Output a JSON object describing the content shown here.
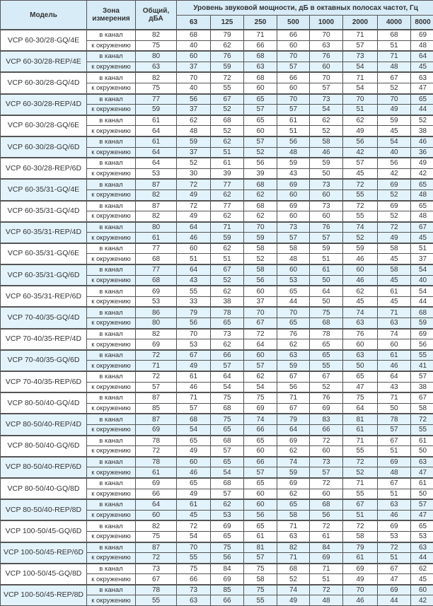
{
  "header": {
    "model": "Модель",
    "zone": "Зона измерения",
    "total": "Общий, дБА",
    "group": "Уровень звуковой мощности, дБ в октавных полосах частот, Гц",
    "freqs": [
      "63",
      "125",
      "250",
      "500",
      "1000",
      "2000",
      "4000",
      "8000"
    ]
  },
  "zones": {
    "duct": "в канал",
    "env": "к окружению"
  },
  "colors": {
    "header_bg": "#d7ecf7",
    "row_blue": "#e3f3fb",
    "text": "#333333"
  },
  "models": [
    {
      "name": "VCP 60-30/28-GQ/4E",
      "shaded": false,
      "duct": [
        82,
        68,
        79,
        71,
        66,
        70,
        71,
        68,
        69
      ],
      "env": [
        75,
        40,
        62,
        66,
        60,
        63,
        57,
        51,
        48
      ]
    },
    {
      "name": "VCP 60-30/28-REP/4E",
      "shaded": true,
      "duct": [
        80,
        60,
        76,
        68,
        70,
        76,
        73,
        71,
        64
      ],
      "env": [
        63,
        37,
        59,
        63,
        57,
        60,
        54,
        48,
        45
      ]
    },
    {
      "name": "VCP 60-30/28-GQ/4D",
      "shaded": false,
      "duct": [
        82,
        70,
        72,
        68,
        66,
        70,
        71,
        67,
        63
      ],
      "env": [
        75,
        40,
        55,
        60,
        60,
        57,
        54,
        52,
        47
      ]
    },
    {
      "name": "VCP 60-30/28-REP/4D",
      "shaded": true,
      "duct": [
        77,
        56,
        67,
        65,
        70,
        73,
        70,
        70,
        65
      ],
      "env": [
        59,
        37,
        52,
        57,
        57,
        54,
        51,
        49,
        44
      ]
    },
    {
      "name": "VCP 60-30/28-GQ/6E",
      "shaded": false,
      "duct": [
        61,
        62,
        68,
        65,
        61,
        62,
        62,
        59,
        52
      ],
      "env": [
        64,
        48,
        52,
        60,
        51,
        52,
        49,
        45,
        38
      ]
    },
    {
      "name": "VCP 60-30/28-GQ/6D",
      "shaded": true,
      "duct": [
        61,
        59,
        62,
        57,
        56,
        58,
        56,
        54,
        46
      ],
      "env": [
        64,
        37,
        51,
        52,
        48,
        46,
        42,
        40,
        36
      ]
    },
    {
      "name": "VCP 60-30/28-REP/6D",
      "shaded": false,
      "duct": [
        64,
        52,
        61,
        56,
        59,
        59,
        57,
        56,
        49
      ],
      "env": [
        53,
        30,
        39,
        39,
        43,
        50,
        45,
        42,
        42
      ]
    },
    {
      "name": "VCP 60-35/31-GQ/4E",
      "shaded": true,
      "duct": [
        87,
        72,
        77,
        68,
        69,
        73,
        72,
        69,
        65
      ],
      "env": [
        82,
        49,
        62,
        62,
        60,
        60,
        55,
        52,
        48
      ]
    },
    {
      "name": "VCP 60-35/31-GQ/4D",
      "shaded": false,
      "duct": [
        87,
        72,
        77,
        68,
        69,
        73,
        72,
        69,
        65
      ],
      "env": [
        82,
        49,
        62,
        62,
        60,
        60,
        55,
        52,
        48
      ]
    },
    {
      "name": "VCP 60-35/31-REP/4D",
      "shaded": true,
      "duct": [
        80,
        64,
        71,
        70,
        73,
        76,
        74,
        72,
        67
      ],
      "env": [
        61,
        46,
        59,
        59,
        57,
        57,
        52,
        49,
        45
      ]
    },
    {
      "name": "VCP 60-35/31-GQ/6E",
      "shaded": false,
      "duct": [
        77,
        60,
        62,
        58,
        58,
        59,
        59,
        58,
        51
      ],
      "env": [
        68,
        51,
        51,
        52,
        48,
        51,
        46,
        45,
        37
      ]
    },
    {
      "name": "VCP 60-35/31-GQ/6D",
      "shaded": true,
      "duct": [
        77,
        64,
        67,
        58,
        60,
        61,
        60,
        58,
        54
      ],
      "env": [
        68,
        43,
        52,
        56,
        53,
        50,
        46,
        45,
        40
      ]
    },
    {
      "name": "VCP 60-35/31-REP/6D",
      "shaded": false,
      "duct": [
        69,
        55,
        62,
        60,
        65,
        64,
        62,
        61,
        54
      ],
      "env": [
        53,
        33,
        38,
        37,
        44,
        50,
        45,
        45,
        44
      ]
    },
    {
      "name": "VCP 70-40/35-GQ/4D",
      "shaded": true,
      "duct": [
        86,
        79,
        78,
        70,
        70,
        75,
        74,
        71,
        68
      ],
      "env": [
        80,
        56,
        65,
        67,
        65,
        68,
        63,
        63,
        59
      ]
    },
    {
      "name": "VCP 70-40/35-REP/4D",
      "shaded": false,
      "duct": [
        82,
        70,
        73,
        72,
        76,
        78,
        76,
        74,
        69
      ],
      "env": [
        69,
        53,
        62,
        64,
        62,
        65,
        60,
        60,
        56
      ]
    },
    {
      "name": "VCP 70-40/35-GQ/6D",
      "shaded": true,
      "duct": [
        72,
        67,
        66,
        60,
        63,
        65,
        63,
        61,
        55
      ],
      "env": [
        71,
        49,
        57,
        57,
        59,
        55,
        50,
        46,
        41
      ]
    },
    {
      "name": "VCP 70-40/35-REP/6D",
      "shaded": false,
      "duct": [
        72,
        61,
        64,
        62,
        67,
        67,
        65,
        64,
        57
      ],
      "env": [
        57,
        46,
        54,
        54,
        56,
        52,
        47,
        43,
        38
      ]
    },
    {
      "name": "VCP 80-50/40-GQ/4D",
      "shaded": false,
      "duct": [
        87,
        71,
        75,
        75,
        71,
        76,
        75,
        71,
        67
      ],
      "env": [
        85,
        57,
        68,
        69,
        67,
        69,
        64,
        50,
        58
      ]
    },
    {
      "name": "VCP 80-50/40-REP/4D",
      "shaded": true,
      "duct": [
        87,
        68,
        75,
        74,
        79,
        83,
        81,
        78,
        72
      ],
      "env": [
        69,
        54,
        65,
        66,
        64,
        66,
        61,
        57,
        55
      ]
    },
    {
      "name": "VCP 80-50/40-GQ/6D",
      "shaded": false,
      "duct": [
        78,
        65,
        68,
        65,
        69,
        72,
        71,
        67,
        61
      ],
      "env": [
        72,
        49,
        57,
        60,
        62,
        60,
        55,
        51,
        50
      ]
    },
    {
      "name": "VCP 80-50/40-REP/6D",
      "shaded": true,
      "duct": [
        78,
        60,
        65,
        66,
        74,
        73,
        72,
        69,
        63
      ],
      "env": [
        61,
        46,
        54,
        57,
        59,
        57,
        52,
        48,
        47
      ]
    },
    {
      "name": "VCP 80-50/40-GQ/8D",
      "shaded": false,
      "duct": [
        69,
        65,
        68,
        65,
        69,
        72,
        71,
        67,
        61
      ],
      "env": [
        66,
        49,
        57,
        60,
        62,
        60,
        55,
        51,
        50
      ]
    },
    {
      "name": "VCP 80-50/40-REP/8D",
      "shaded": true,
      "duct": [
        64,
        61,
        62,
        60,
        65,
        68,
        67,
        63,
        57
      ],
      "env": [
        60,
        45,
        53,
        56,
        58,
        56,
        51,
        46,
        47
      ]
    },
    {
      "name": "VCP 100-50/45-GQ/6D",
      "shaded": false,
      "duct": [
        82,
        72,
        69,
        65,
        71,
        72,
        72,
        69,
        65
      ],
      "env": [
        75,
        54,
        65,
        61,
        63,
        61,
        58,
        53,
        53
      ]
    },
    {
      "name": "VCP 100-50/45-REP/6D",
      "shaded": true,
      "duct": [
        87,
        70,
        75,
        81,
        82,
        84,
        79,
        72,
        63
      ],
      "env": [
        72,
        55,
        56,
        57,
        71,
        69,
        61,
        51,
        44
      ]
    },
    {
      "name": "VCP 100-50/45-GQ/8D",
      "shaded": false,
      "duct": [
        73,
        75,
        84,
        75,
        68,
        71,
        69,
        67,
        62
      ],
      "env": [
        67,
        66,
        69,
        58,
        52,
        51,
        49,
        47,
        45
      ]
    },
    {
      "name": "VCP 100-50/45-REP/8D",
      "shaded": true,
      "duct": [
        78,
        73,
        85,
        75,
        74,
        72,
        70,
        69,
        60
      ],
      "env": [
        55,
        63,
        66,
        55,
        49,
        48,
        46,
        44,
        42
      ]
    }
  ]
}
